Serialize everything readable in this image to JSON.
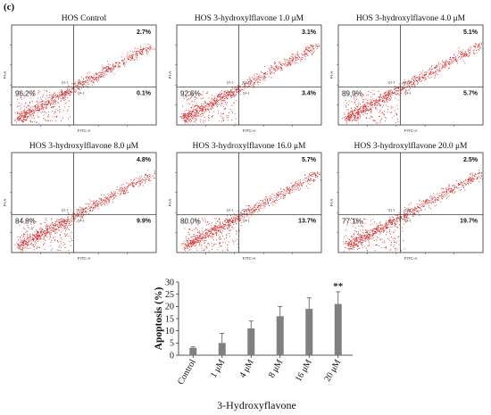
{
  "panel_label": "(c)",
  "flow_plots": [
    {
      "title": "HOS Control",
      "ur": "2.7%",
      "ll": "96.2%",
      "lr": "0.1%",
      "x_axis": "FITC-A",
      "y_axis": "PI-A"
    },
    {
      "title": "HOS 3-hydroxylflavone 1.0 μM",
      "ur": "3.1%",
      "ll": "92.6%",
      "lr": "3.4%",
      "x_axis": "FITC-A",
      "y_axis": "PI-A"
    },
    {
      "title": "HOS 3-hydroxylflavone 4.0 μM",
      "ur": "5.1%",
      "ll": "89.9%",
      "lr": "5.7%",
      "x_axis": "FITC-A",
      "y_axis": "PI-A"
    },
    {
      "title": "HOS 3-hydroxylflavone 8.0 μM",
      "ur": "4.8%",
      "ll": "84.8%",
      "lr": "9.9%",
      "x_axis": "FITC-A",
      "y_axis": "PI-A"
    },
    {
      "title": "HOS 3-hydroxylflavone 16.0 μM",
      "ur": "5.7%",
      "ll": "80.0%",
      "lr": "13.7%",
      "x_axis": "FITC-A",
      "y_axis": "PI-A"
    },
    {
      "title": "HOS 3-hydroxylflavone 20.0 μM",
      "ur": "2.5%",
      "ll": "77.1%",
      "lr": "19.7%",
      "x_axis": "FITC-A",
      "y_axis": "PI-A"
    }
  ],
  "quadrant_labels": [
    "Q1-1",
    "Q2-1",
    "Q3-1",
    "Q4-1"
  ],
  "chart_data": {
    "type": "bar",
    "categories": [
      "Control",
      "1 μM",
      "4 μM",
      "8 μM",
      "16 μM",
      "20 μM"
    ],
    "values": [
      3,
      5,
      11,
      16,
      19,
      21
    ],
    "errors": [
      0.4,
      4,
      3,
      4,
      4.5,
      5
    ],
    "significance": [
      "",
      "",
      "",
      "",
      "",
      "**"
    ],
    "xlabel": "3-Hydroxyflavone",
    "ylabel": "Apoptosis (%)",
    "ylim": [
      0,
      30
    ],
    "yticks": [
      0,
      5,
      10,
      15,
      20,
      25,
      30
    ],
    "bar_color": "#808080"
  },
  "colors": {
    "dots": "#d42a2a",
    "gate": "#222222"
  }
}
